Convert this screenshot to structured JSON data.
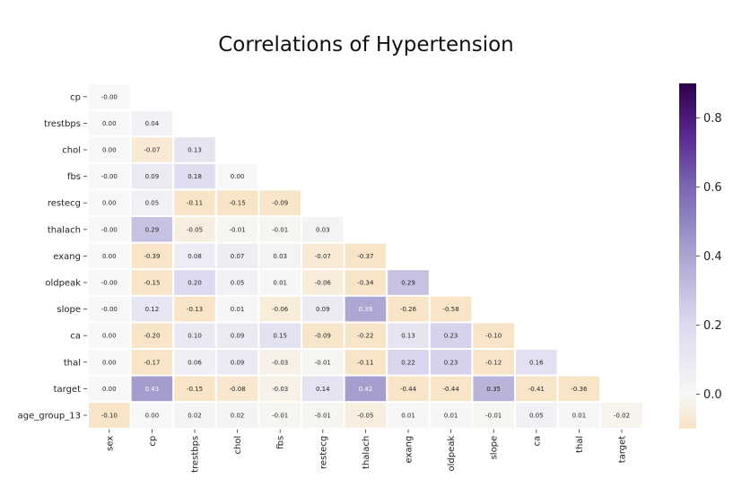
{
  "chart_data": {
    "type": "heatmap",
    "title": "Correlations of Hypertension",
    "row_labels": [
      "cp",
      "trestbps",
      "chol",
      "fbs",
      "restecg",
      "thalach",
      "exang",
      "oldpeak",
      "slope",
      "ca",
      "thal",
      "target",
      "age_group_13"
    ],
    "col_labels": [
      "sex",
      "cp",
      "trestbps",
      "chol",
      "fbs",
      "restecg",
      "thalach",
      "exang",
      "oldpeak",
      "slope",
      "ca",
      "thal",
      "target"
    ],
    "cell_text": [
      [
        "-0.00"
      ],
      [
        "0.00",
        "0.04"
      ],
      [
        "0.00",
        "-0.07",
        "0.13"
      ],
      [
        "-0.00",
        "0.09",
        "0.18",
        "0.00"
      ],
      [
        "0.00",
        "0.05",
        "-0.11",
        "-0.15",
        "-0.09"
      ],
      [
        "-0.00",
        "0.29",
        "-0.05",
        "-0.01",
        "-0.01",
        "0.03"
      ],
      [
        "0.00",
        "-0.39",
        "0.08",
        "0.07",
        "0.03",
        "-0.07",
        "-0.37"
      ],
      [
        "-0.00",
        "-0.15",
        "0.20",
        "0.05",
        "0.01",
        "-0.06",
        "-0.34",
        "0.29"
      ],
      [
        "-0.00",
        "0.12",
        "-0.13",
        "0.01",
        "-0.06",
        "0.09",
        "0.39",
        "-0.26",
        "-0.58"
      ],
      [
        "0.00",
        "-0.20",
        "0.10",
        "0.09",
        "0.15",
        "-0.09",
        "-0.22",
        "0.13",
        "0.23",
        "-0.10"
      ],
      [
        "0.00",
        "-0.17",
        "0.06",
        "0.09",
        "-0.03",
        "-0.01",
        "-0.11",
        "0.22",
        "0.23",
        "-0.12",
        "0.16"
      ],
      [
        "0.00",
        "0.43",
        "-0.15",
        "-0.08",
        "-0.03",
        "0.14",
        "0.42",
        "-0.44",
        "-0.44",
        "0.35",
        "-0.41",
        "-0.36"
      ],
      [
        "-0.10",
        "0.00",
        "0.02",
        "0.02",
        "-0.01",
        "-0.01",
        "-0.05",
        "0.01",
        "0.01",
        "-0.01",
        "0.05",
        "0.01",
        "-0.02"
      ]
    ],
    "colorbar": {
      "vmin": -0.1,
      "vmax": 0.9,
      "ticks": [
        "0.0",
        "0.2",
        "0.4",
        "0.6",
        "0.8"
      ]
    }
  }
}
